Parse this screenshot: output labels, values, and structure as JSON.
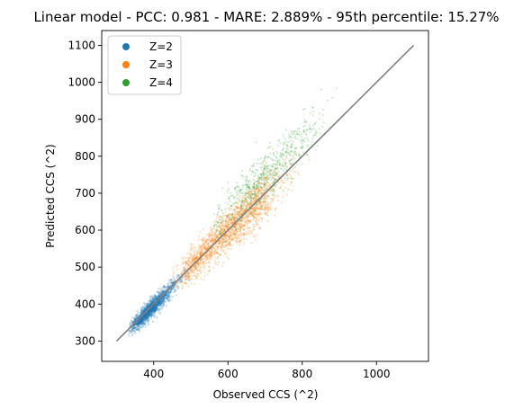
{
  "chart_data": {
    "type": "scatter",
    "title": "Linear model - PCC: 0.981 - MARE: 2.889% - 95th percentile: 15.27%",
    "xlabel": "Observed CCS (^2)",
    "ylabel": "Predicted CCS (^2)",
    "xlim": [
      260,
      1140
    ],
    "ylim": [
      245,
      1140
    ],
    "xticks": [
      400,
      600,
      800,
      1000
    ],
    "yticks": [
      300,
      400,
      500,
      600,
      700,
      800,
      900,
      1000,
      1100
    ],
    "grid": false,
    "legend_position": "top-left",
    "series": [
      {
        "name": "Z=2",
        "color": "#1f77b4",
        "x_range": [
          315,
          500
        ],
        "slope_range": [
          0.96,
          1.1
        ],
        "density": "high"
      },
      {
        "name": "Z=3",
        "color": "#ff7f0e",
        "x_range": [
          450,
          780
        ],
        "slope_range": [
          0.82,
          1.05
        ],
        "density": "high"
      },
      {
        "name": "Z=4",
        "color": "#2ca02c",
        "x_range": [
          560,
          950
        ],
        "slope_range": [
          0.9,
          1.12
        ],
        "density": "low"
      }
    ],
    "reference_line": {
      "x": [
        300,
        1100
      ],
      "y": [
        300,
        1100
      ],
      "color": "#808080"
    }
  }
}
